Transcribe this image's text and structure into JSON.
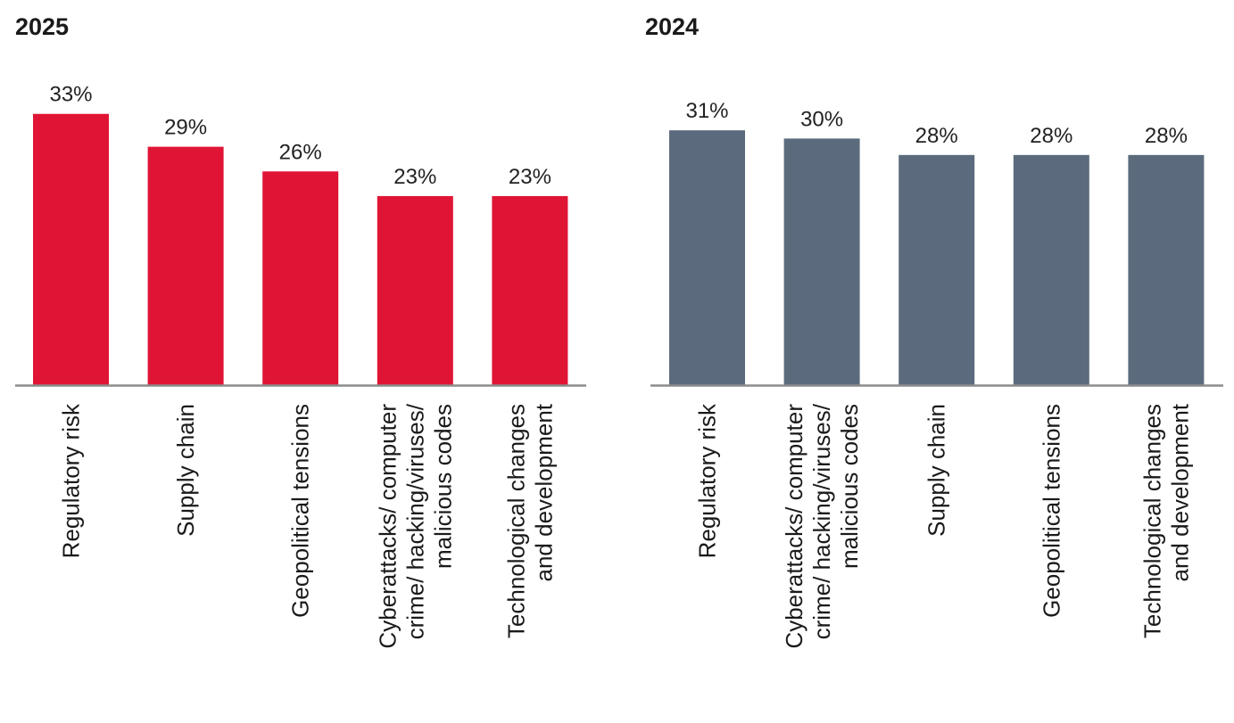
{
  "chart_data": [
    {
      "type": "bar",
      "title": "2025",
      "categories": [
        [
          "Regulatory risk"
        ],
        [
          "Supply chain"
        ],
        [
          "Geopolitical tensions"
        ],
        [
          "Cyberattacks/ computer",
          "crime/ hacking/viruses/",
          "malicious codes"
        ],
        [
          "Technological changes",
          "and development"
        ]
      ],
      "values": [
        33,
        29,
        26,
        23,
        23
      ],
      "value_labels": [
        "33%",
        "29%",
        "26%",
        "23%",
        "23%"
      ],
      "ylim": [
        0,
        36
      ],
      "color": "#e01535"
    },
    {
      "type": "bar",
      "title": "2024",
      "categories": [
        [
          "Regulatory risk"
        ],
        [
          "Cyberattacks/ computer",
          "crime/ hacking/viruses/",
          "malicious codes"
        ],
        [
          "Supply chain"
        ],
        [
          "Geopolitical tensions"
        ],
        [
          "Technological changes",
          "and development"
        ]
      ],
      "values": [
        31,
        30,
        28,
        28,
        28
      ],
      "value_labels": [
        "31%",
        "30%",
        "28%",
        "28%",
        "28%"
      ],
      "ylim": [
        0,
        36
      ],
      "color": "#5b6b7d"
    }
  ]
}
